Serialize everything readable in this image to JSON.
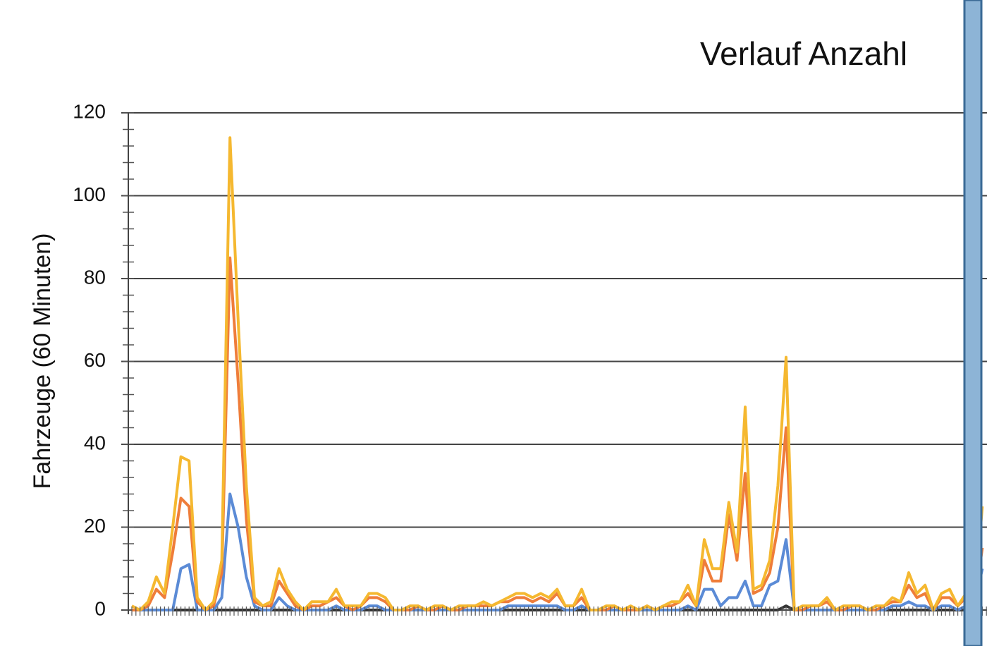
{
  "chart_data": {
    "type": "line",
    "title": "Verlauf Anzahl",
    "y_label": "Fahrzeuge (60 Minuten)",
    "ylim": [
      0,
      120
    ],
    "yticks": [
      0,
      20,
      40,
      60,
      80,
      100,
      120
    ],
    "grid": true,
    "series": [
      {
        "color": "#f5b830",
        "values": [
          1,
          0,
          2,
          8,
          4,
          20,
          37,
          36,
          3,
          0,
          2,
          12,
          114,
          70,
          30,
          3,
          1,
          2,
          10,
          5,
          2,
          0,
          2,
          2,
          2,
          5,
          1,
          1,
          1,
          4,
          4,
          3,
          0,
          0,
          1,
          1,
          0,
          1,
          1,
          0,
          1,
          1,
          1,
          2,
          1,
          2,
          3,
          4,
          4,
          3,
          4,
          3,
          5,
          1,
          1,
          5,
          0,
          0,
          1,
          1,
          0,
          1,
          0,
          1,
          0,
          1,
          2,
          2,
          6,
          1,
          17,
          10,
          10,
          26,
          14,
          49,
          5,
          6,
          12,
          30,
          61,
          0,
          1,
          1,
          1,
          3,
          0,
          1,
          1,
          1,
          0,
          1,
          1,
          3,
          2,
          9,
          4,
          6,
          0,
          4,
          5,
          1,
          4,
          2,
          25
        ]
      },
      {
        "color": "#ef7d3a",
        "values": [
          0,
          0,
          1,
          5,
          3,
          14,
          27,
          25,
          2,
          0,
          1,
          9,
          85,
          55,
          22,
          2,
          1,
          1,
          7,
          4,
          1,
          0,
          1,
          1,
          2,
          3,
          1,
          0,
          1,
          3,
          3,
          2,
          0,
          0,
          0,
          1,
          0,
          0,
          1,
          0,
          0,
          1,
          1,
          1,
          1,
          2,
          2,
          3,
          3,
          2,
          3,
          2,
          4,
          1,
          1,
          3,
          0,
          0,
          0,
          1,
          0,
          0,
          0,
          1,
          0,
          1,
          1,
          2,
          4,
          1,
          12,
          7,
          7,
          23,
          12,
          33,
          4,
          5,
          9,
          20,
          44,
          0,
          0,
          1,
          1,
          2,
          0,
          0,
          1,
          1,
          0,
          0,
          1,
          2,
          2,
          6,
          3,
          4,
          0,
          3,
          3,
          1,
          3,
          1,
          15
        ]
      },
      {
        "color": "#5b8bd6",
        "values": [
          0,
          0,
          0,
          0,
          0,
          0,
          10,
          11,
          0,
          0,
          0,
          3,
          28,
          20,
          8,
          1,
          0,
          0,
          3,
          1,
          0,
          0,
          0,
          0,
          0,
          1,
          0,
          0,
          0,
          1,
          1,
          0,
          0,
          0,
          0,
          0,
          0,
          0,
          0,
          0,
          0,
          0,
          0,
          0,
          0,
          0,
          1,
          1,
          1,
          1,
          1,
          1,
          1,
          0,
          0,
          1,
          0,
          0,
          0,
          0,
          0,
          0,
          0,
          0,
          0,
          0,
          0,
          0,
          1,
          0,
          5,
          5,
          1,
          3,
          3,
          7,
          1,
          1,
          6,
          7,
          17,
          0,
          0,
          0,
          0,
          0,
          0,
          0,
          0,
          0,
          0,
          0,
          0,
          1,
          1,
          2,
          1,
          1,
          0,
          1,
          1,
          0,
          1,
          1,
          10
        ]
      },
      {
        "color": "#333333",
        "values": [
          0,
          0,
          0,
          0,
          0,
          0,
          0,
          0,
          0,
          0,
          0,
          0,
          0,
          0,
          0,
          0,
          0,
          0,
          0,
          0,
          0,
          0,
          0,
          0,
          0,
          0,
          0,
          0,
          0,
          0,
          0,
          0,
          0,
          0,
          0,
          0,
          0,
          0,
          0,
          0,
          0,
          0,
          0,
          0,
          0,
          0,
          0,
          0,
          0,
          0,
          0,
          0,
          0,
          0,
          0,
          0,
          0,
          0,
          0,
          0,
          0,
          0,
          0,
          0,
          0,
          0,
          0,
          0,
          0,
          0,
          0,
          0,
          0,
          0,
          0,
          0,
          0,
          0,
          0,
          0,
          1,
          0,
          0,
          0,
          0,
          0,
          0,
          0,
          0,
          0,
          0,
          0,
          0,
          0,
          0,
          0,
          0,
          0,
          0,
          0,
          0,
          0,
          0,
          0,
          0
        ]
      }
    ]
  }
}
